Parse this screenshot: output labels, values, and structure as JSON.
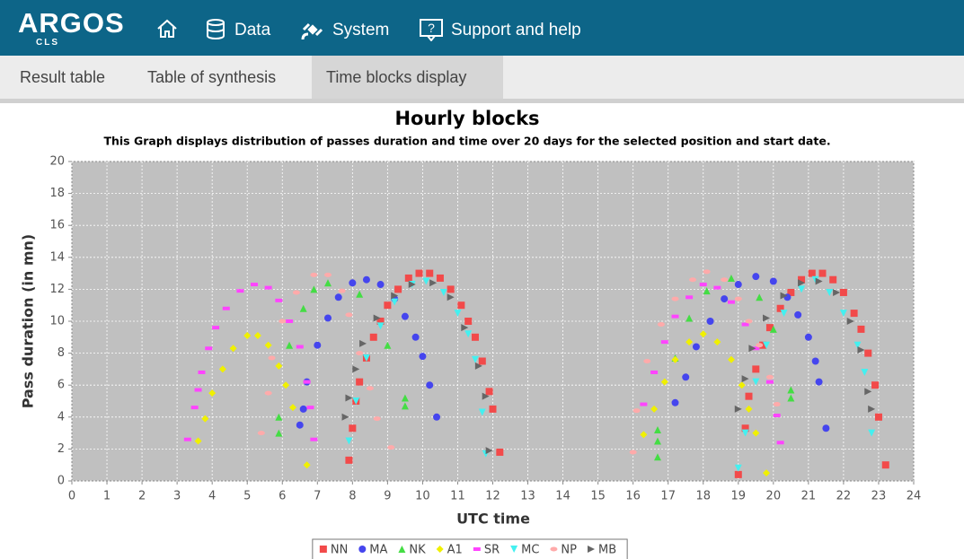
{
  "header": {
    "logo": "ARGOS",
    "logo_sub": "CLS",
    "nav": [
      "Data",
      "System",
      "Support and help"
    ]
  },
  "tabs": {
    "items": [
      "Result table",
      "Table of synthesis",
      "Time blocks display"
    ],
    "active": 2
  },
  "chart_data": {
    "type": "scatter",
    "title": "Hourly blocks",
    "subtitle": "This Graph displays distribution of passes duration and time over 20 days for the selected position and start date.",
    "xlabel": "UTC time",
    "ylabel": "Pass duration (in mn)",
    "xlim": [
      0,
      24
    ],
    "xticks": [
      0,
      1,
      2,
      3,
      4,
      5,
      6,
      7,
      8,
      9,
      10,
      11,
      12,
      13,
      14,
      15,
      16,
      17,
      18,
      19,
      20,
      21,
      22,
      23,
      24
    ],
    "ylim": [
      0,
      20
    ],
    "yticks": [
      0,
      2,
      4,
      6,
      8,
      10,
      12,
      14,
      16,
      18,
      20
    ],
    "grid": true,
    "legend": "bottom",
    "series": [
      {
        "name": "NN",
        "color": "#f24a4a",
        "marker": "square",
        "x": [
          7.9,
          8.0,
          8.1,
          8.2,
          8.4,
          8.6,
          8.8,
          9.0,
          9.3,
          9.6,
          9.9,
          10.2,
          10.5,
          10.8,
          11.1,
          11.3,
          11.5,
          11.7,
          11.9,
          12.0,
          12.2,
          19.0,
          19.2,
          19.3,
          19.5,
          19.7,
          19.9,
          20.2,
          20.5,
          20.8,
          21.1,
          21.4,
          21.7,
          22.0,
          22.3,
          22.5,
          22.7,
          22.9,
          23.0,
          23.2
        ],
        "y": [
          1.3,
          3.3,
          5,
          6.2,
          7.7,
          9,
          10,
          11,
          12,
          12.7,
          13,
          13,
          12.7,
          12,
          11,
          10,
          9,
          7.5,
          5.6,
          4.5,
          1.8,
          0.4,
          3.3,
          5.3,
          7,
          8.5,
          9.6,
          10.8,
          11.8,
          12.6,
          13,
          13,
          12.6,
          11.8,
          10.5,
          9.5,
          8,
          6,
          4,
          1
        ]
      },
      {
        "name": "MA",
        "color": "#4545ee",
        "marker": "circle",
        "x": [
          6.5,
          6.6,
          6.7,
          7.0,
          7.3,
          7.6,
          8.0,
          8.4,
          8.8,
          9.2,
          9.5,
          9.8,
          10.0,
          10.2,
          10.4,
          17.2,
          17.5,
          17.8,
          18.2,
          18.6,
          19.0,
          19.5,
          20.0,
          20.4,
          20.7,
          21.0,
          21.2,
          21.3,
          21.5
        ],
        "y": [
          3.5,
          4.5,
          6.2,
          8.5,
          10.2,
          11.5,
          12.4,
          12.6,
          12.3,
          11.4,
          10.3,
          9,
          7.8,
          6,
          4,
          4.9,
          6.5,
          8.4,
          10,
          11.4,
          12.3,
          12.8,
          12.5,
          11.5,
          10.4,
          9,
          7.5,
          6.2,
          3.3
        ]
      },
      {
        "name": "NK",
        "color": "#44dd44",
        "marker": "triangle-up",
        "x": [
          5.9,
          5.9,
          6.2,
          6.6,
          6.9,
          7.3,
          8.2,
          9.0,
          9.5,
          9.5,
          16.7,
          16.7,
          16.7,
          17.2,
          17.6,
          18.1,
          18.8,
          19.6,
          20.0,
          20.5,
          20.5
        ],
        "y": [
          3,
          4,
          8.5,
          10.8,
          12,
          12.4,
          11.7,
          8.5,
          4.7,
          5.2,
          1.5,
          2.5,
          3.2,
          7.7,
          10.2,
          11.9,
          12.7,
          11.5,
          9.5,
          5.7,
          5.2
        ]
      },
      {
        "name": "A1",
        "color": "#f0f000",
        "marker": "diamond",
        "x": [
          3.6,
          3.8,
          4.0,
          4.3,
          4.6,
          5.0,
          5.3,
          5.6,
          5.9,
          6.1,
          6.3,
          6.7,
          16.3,
          16.6,
          16.9,
          17.2,
          17.6,
          18.0,
          18.4,
          18.8,
          19.1,
          19.3,
          19.5,
          19.8
        ],
        "y": [
          2.5,
          3.9,
          5.5,
          7,
          8.3,
          9.1,
          9.1,
          8.5,
          7.2,
          6,
          4.6,
          1,
          2.9,
          4.5,
          6.2,
          7.6,
          8.7,
          9.2,
          8.7,
          7.6,
          6,
          4.5,
          3,
          0.5
        ]
      },
      {
        "name": "SR",
        "color": "#ff44ff",
        "marker": "dash",
        "x": [
          3.3,
          3.5,
          3.6,
          3.7,
          3.9,
          4.1,
          4.4,
          4.8,
          5.2,
          5.6,
          5.9,
          6.2,
          6.5,
          6.7,
          6.8,
          6.9,
          16.3,
          16.6,
          16.9,
          17.2,
          17.6,
          18.0,
          18.4,
          18.8,
          19.2,
          19.5,
          19.9,
          20.1,
          20.2
        ],
        "y": [
          2.6,
          4.6,
          5.7,
          6.8,
          8.3,
          9.6,
          10.8,
          11.9,
          12.3,
          12.1,
          11.3,
          10,
          8.4,
          6.2,
          4.6,
          2.6,
          4.8,
          6.8,
          8.7,
          10.3,
          11.5,
          12.3,
          12.1,
          11.2,
          9.8,
          8.3,
          6.2,
          4.1,
          2.4
        ]
      },
      {
        "name": "MC",
        "color": "#44f0f0",
        "marker": "triangle-down",
        "x": [
          7.9,
          8.1,
          8.4,
          8.8,
          9.2,
          9.7,
          10.1,
          10.6,
          11.0,
          11.3,
          11.5,
          11.7,
          11.8,
          19.0,
          19.2,
          19.5,
          19.8,
          20.3,
          20.8,
          21.2,
          21.6,
          22.0,
          22.4,
          22.6,
          22.8
        ],
        "y": [
          2.5,
          5,
          7.7,
          9.7,
          11.2,
          12.3,
          12.5,
          11.8,
          10.5,
          9.2,
          7.6,
          4.3,
          1.7,
          0.8,
          3,
          6.2,
          8.5,
          10.5,
          12,
          12.6,
          11.8,
          10.5,
          8.5,
          6.8,
          3
        ]
      },
      {
        "name": "NP",
        "color": "#ffaaaa",
        "marker": "ellipse",
        "x": [
          5.4,
          5.6,
          5.7,
          6.0,
          6.4,
          6.9,
          7.3,
          7.7,
          7.9,
          8.2,
          8.5,
          8.7,
          9.1,
          16.0,
          16.1,
          16.4,
          16.8,
          17.2,
          17.7,
          18.1,
          18.6,
          19.0,
          19.3,
          19.6,
          19.9,
          20.1
        ],
        "y": [
          3,
          5.5,
          7.7,
          10,
          11.8,
          12.9,
          12.9,
          11.9,
          10.4,
          8,
          5.8,
          3.9,
          2.1,
          1.8,
          4.4,
          7.5,
          9.8,
          11.4,
          12.6,
          13.1,
          12.6,
          11.4,
          10,
          8.5,
          6.5,
          4.8
        ]
      },
      {
        "name": "MB",
        "color": "#666666",
        "marker": "triangle-right",
        "x": [
          7.8,
          7.9,
          8.1,
          8.3,
          8.7,
          9.2,
          9.7,
          10.3,
          10.8,
          11.2,
          11.6,
          11.8,
          11.9,
          19.0,
          19.2,
          19.4,
          19.8,
          20.3,
          20.8,
          21.3,
          21.8,
          22.2,
          22.5,
          22.7,
          22.8
        ],
        "y": [
          4,
          5.2,
          7,
          8.6,
          10.2,
          11.6,
          12.3,
          12.4,
          11.5,
          9.6,
          7.2,
          5.3,
          1.9,
          4.5,
          6.4,
          8.3,
          10.2,
          11.6,
          12.4,
          12.5,
          11.8,
          10,
          8.2,
          5.6,
          4.5
        ]
      }
    ]
  }
}
